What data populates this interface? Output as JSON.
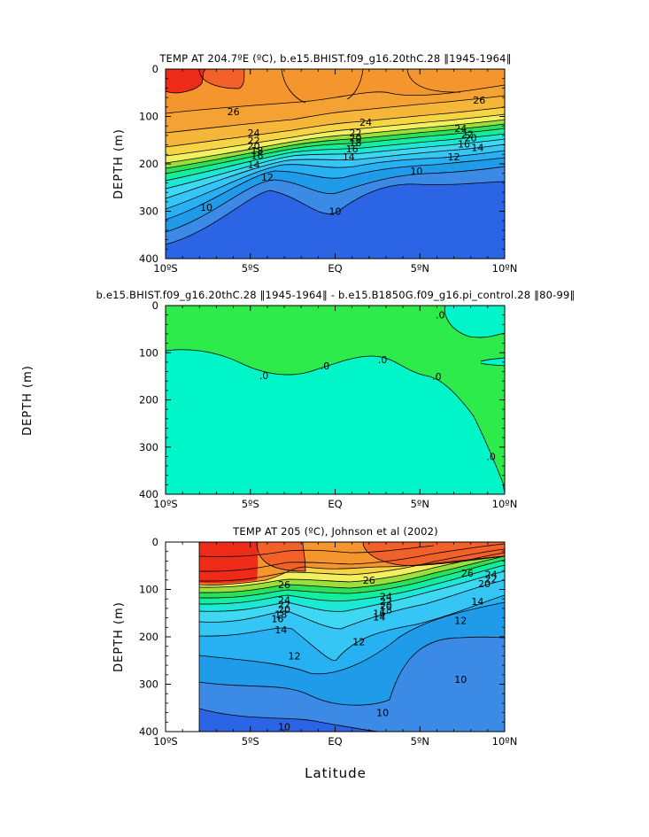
{
  "figure": {
    "xlabel": "Latitude"
  },
  "chart_data": [
    {
      "type": "heatmap",
      "title": "TEMP AT 204.7ºE (ºC), b.e15.BHIST.f09_g16.20thC.28 ‖1945-1964‖",
      "ylabel": "DEPTH (m)",
      "xlabel": "",
      "x_ticks": [
        "10ºS",
        "5ºS",
        "EQ",
        "5ºN",
        "10ºN"
      ],
      "x_tick_values": [
        -10,
        -5,
        0,
        5,
        10
      ],
      "y_ticks": [
        "0",
        "100",
        "200",
        "300",
        "400"
      ],
      "y_tick_values": [
        0,
        100,
        200,
        300,
        400
      ],
      "xlim": [
        -10,
        10
      ],
      "ylim": [
        400,
        0
      ],
      "contour_labels": [
        {
          "text": "26",
          "x": -6.0,
          "y": 90
        },
        {
          "text": "26",
          "x": 8.5,
          "y": 65
        },
        {
          "text": "24",
          "x": 1.8,
          "y": 112
        },
        {
          "text": "24",
          "x": -4.8,
          "y": 135
        },
        {
          "text": "24",
          "x": 7.4,
          "y": 125
        },
        {
          "text": "22",
          "x": -4.8,
          "y": 150
        },
        {
          "text": "22",
          "x": 1.2,
          "y": 135
        },
        {
          "text": "22",
          "x": 7.8,
          "y": 137
        },
        {
          "text": "20",
          "x": -4.8,
          "y": 162
        },
        {
          "text": "20",
          "x": 1.2,
          "y": 145
        },
        {
          "text": "20",
          "x": 8.0,
          "y": 145
        },
        {
          "text": "18",
          "x": -4.6,
          "y": 172
        },
        {
          "text": "18",
          "x": 1.2,
          "y": 155
        },
        {
          "text": "16",
          "x": -4.6,
          "y": 182
        },
        {
          "text": "16",
          "x": 1.0,
          "y": 168
        },
        {
          "text": "16",
          "x": 7.6,
          "y": 158
        },
        {
          "text": "14",
          "x": -4.8,
          "y": 202
        },
        {
          "text": "14",
          "x": 0.8,
          "y": 185
        },
        {
          "text": "14",
          "x": 8.4,
          "y": 165
        },
        {
          "text": "12",
          "x": -4.0,
          "y": 228
        },
        {
          "text": "12",
          "x": 7.0,
          "y": 185
        },
        {
          "text": "10",
          "x": 4.8,
          "y": 215
        },
        {
          "text": "10",
          "x": -7.6,
          "y": 292
        },
        {
          "text": "10",
          "x": 0.0,
          "y": 300
        }
      ]
    },
    {
      "type": "heatmap",
      "title": "b.e15.BHIST.f09_g16.20thC.28 ‖1945-1964‖ - b.e15.B1850G.f09_g16.pi_control.28 ‖80-99‖",
      "ylabel": "DEPTH (m)",
      "xlabel": "",
      "x_ticks": [
        "10ºS",
        "5ºS",
        "EQ",
        "5ºN",
        "10ºN"
      ],
      "x_tick_values": [
        -10,
        -5,
        0,
        5,
        10
      ],
      "y_ticks": [
        "0",
        "100",
        "200",
        "300",
        "400"
      ],
      "y_tick_values": [
        0,
        100,
        200,
        300,
        400
      ],
      "xlim": [
        -10,
        10
      ],
      "ylim": [
        400,
        0
      ],
      "contour_labels": [
        {
          "text": ".0",
          "x": -4.2,
          "y": 148
        },
        {
          "text": ".0",
          "x": -0.6,
          "y": 128
        },
        {
          "text": ".0",
          "x": 2.8,
          "y": 115
        },
        {
          "text": ".0",
          "x": 6.0,
          "y": 150
        },
        {
          "text": ".0",
          "x": 6.2,
          "y": 20
        },
        {
          "text": ".0",
          "x": 9.2,
          "y": 320
        }
      ]
    },
    {
      "type": "heatmap",
      "title": "TEMP AT 205 (ºC), Johnson et al (2002)",
      "ylabel": "DEPTH (m)",
      "xlabel": "Latitude",
      "x_ticks": [
        "10ºS",
        "5ºS",
        "EQ",
        "5ºN",
        "10ºN"
      ],
      "x_tick_values": [
        -10,
        -5,
        0,
        5,
        10
      ],
      "y_ticks": [
        "0",
        "100",
        "200",
        "300",
        "400"
      ],
      "y_tick_values": [
        0,
        100,
        200,
        300,
        400
      ],
      "xlim": [
        -10,
        10
      ],
      "ylim": [
        400,
        0
      ],
      "contour_labels": [
        {
          "text": "26",
          "x": -3.0,
          "y": 90
        },
        {
          "text": "26",
          "x": 2.0,
          "y": 80
        },
        {
          "text": "26",
          "x": 7.8,
          "y": 65
        },
        {
          "text": "24",
          "x": -3.0,
          "y": 122
        },
        {
          "text": "24",
          "x": 3.0,
          "y": 115
        },
        {
          "text": "24",
          "x": 9.2,
          "y": 68
        },
        {
          "text": "22",
          "x": -3.0,
          "y": 132
        },
        {
          "text": "22",
          "x": 3.0,
          "y": 125
        },
        {
          "text": "22",
          "x": 9.2,
          "y": 78
        },
        {
          "text": "20",
          "x": -3.0,
          "y": 142
        },
        {
          "text": "20",
          "x": 3.0,
          "y": 135
        },
        {
          "text": "20",
          "x": 8.8,
          "y": 88
        },
        {
          "text": "18",
          "x": -3.2,
          "y": 152
        },
        {
          "text": "18",
          "x": 3.0,
          "y": 143
        },
        {
          "text": "16",
          "x": -3.4,
          "y": 162
        },
        {
          "text": "16",
          "x": 2.6,
          "y": 150
        },
        {
          "text": "14",
          "x": -3.2,
          "y": 185
        },
        {
          "text": "14",
          "x": 2.6,
          "y": 158
        },
        {
          "text": "14",
          "x": 8.4,
          "y": 125
        },
        {
          "text": "12",
          "x": 1.4,
          "y": 210
        },
        {
          "text": "12",
          "x": 7.4,
          "y": 165
        },
        {
          "text": "12",
          "x": -2.4,
          "y": 240
        },
        {
          "text": "10",
          "x": 7.4,
          "y": 290
        },
        {
          "text": "10",
          "x": 2.8,
          "y": 360
        },
        {
          "text": "10",
          "x": -3.0,
          "y": 390
        }
      ]
    }
  ]
}
